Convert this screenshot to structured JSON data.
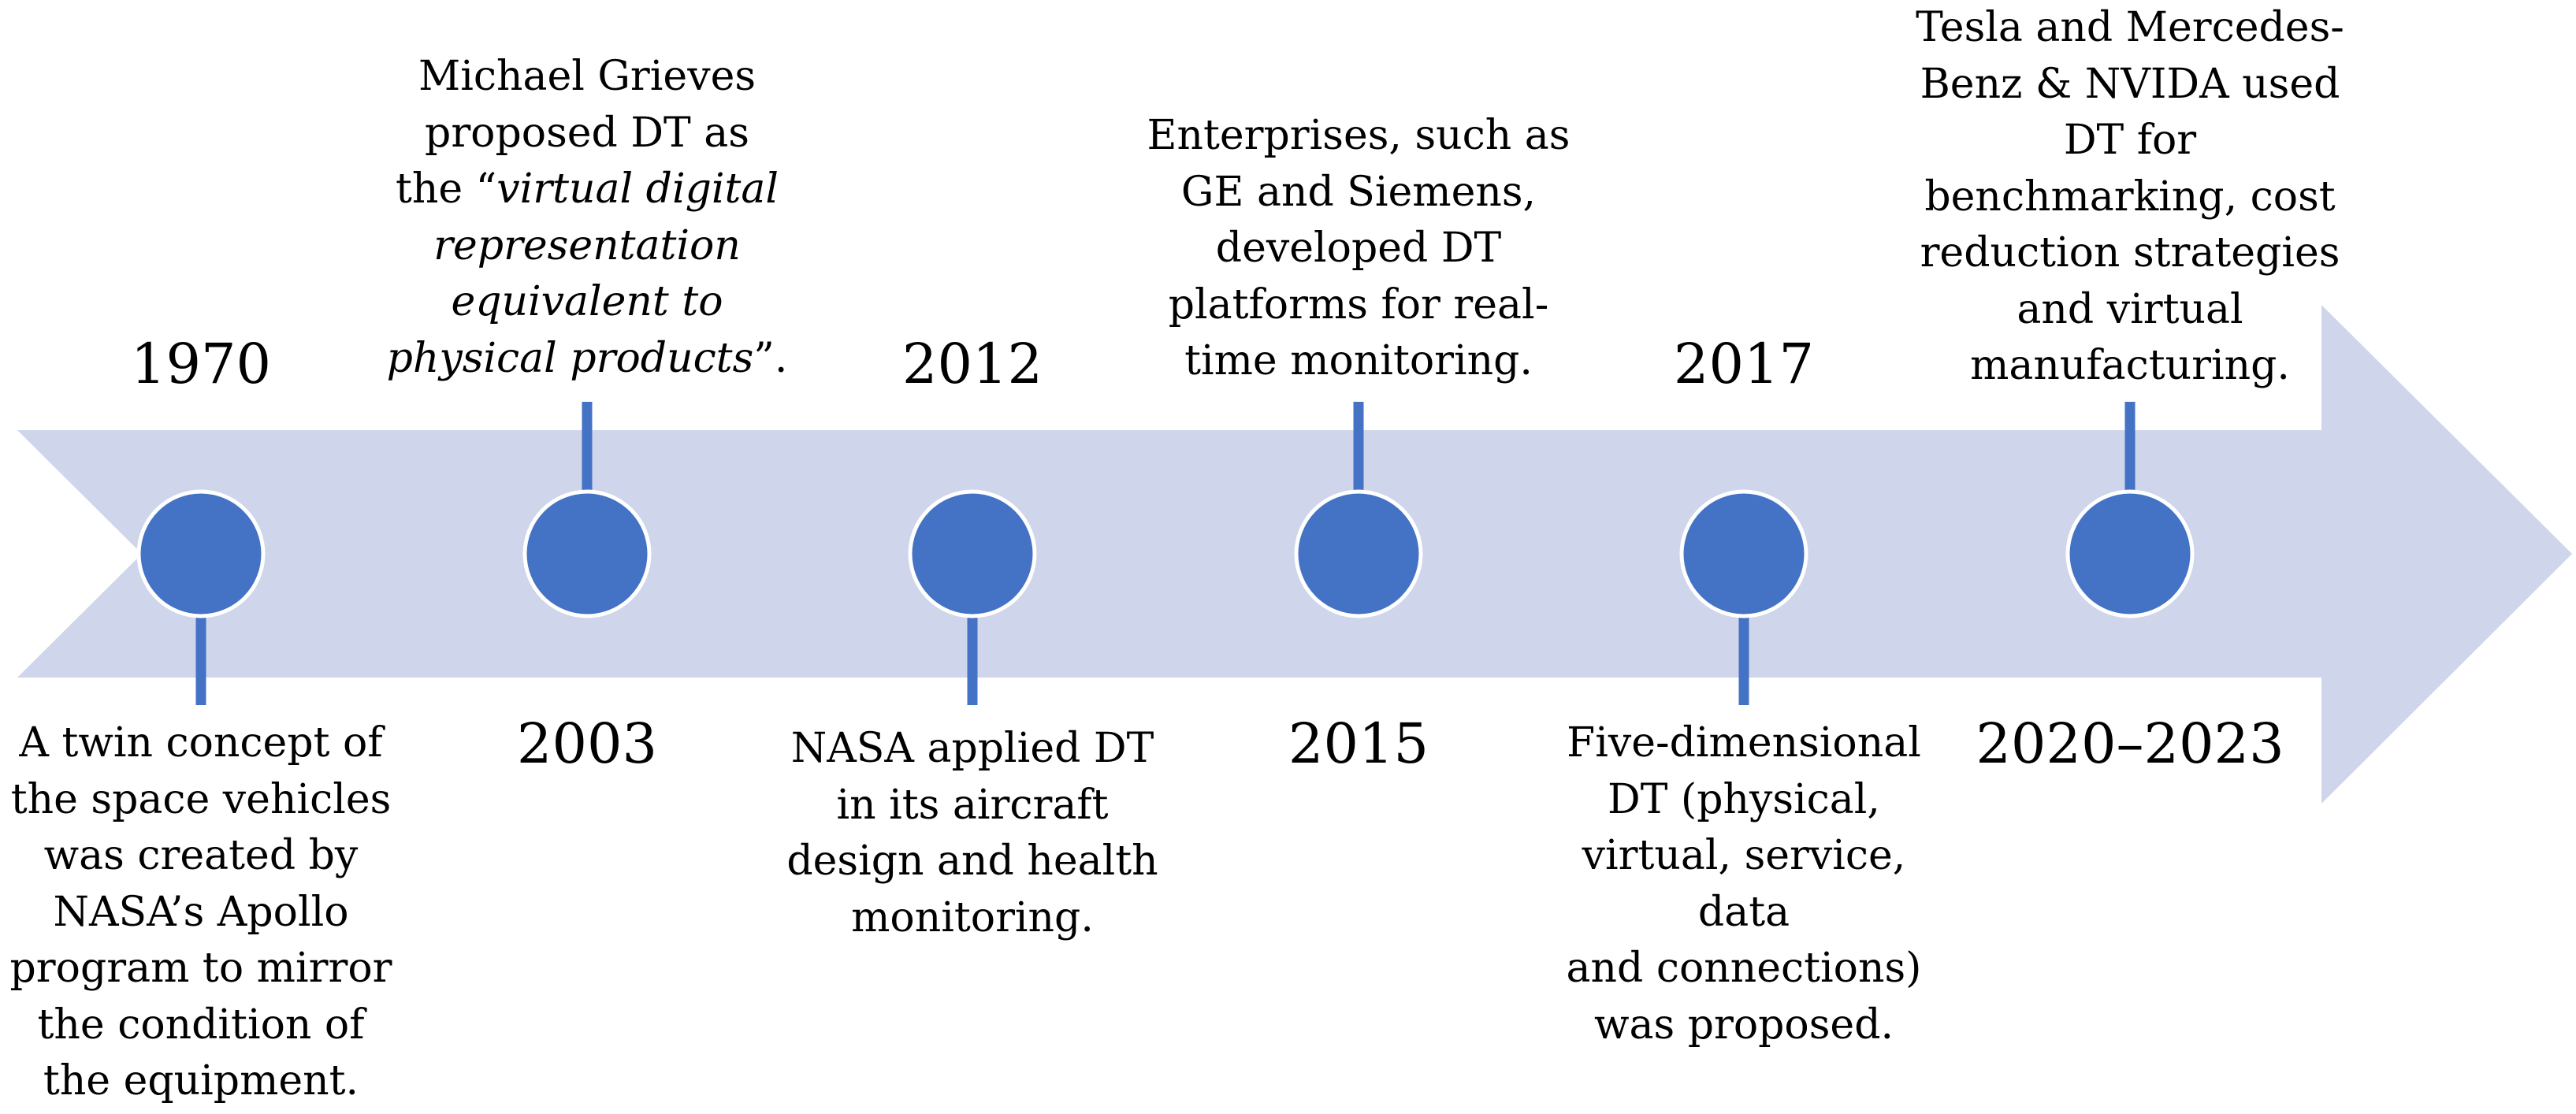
{
  "colors": {
    "arrow": "#CFD5EA",
    "node_fill": "#4472C4",
    "node_stroke": "#FFFFFF",
    "connector": "#4472C4",
    "text": "#000000"
  },
  "events": [
    {
      "year": "1970",
      "description": "A twin concept of\nthe space vehicles\nwas created by\nNASA’s Apollo\nprogram to mirror\nthe condition of\nthe equipment."
    },
    {
      "year": "2003",
      "description_parts": [
        {
          "text": "Michael Grieves\nproposed DT as\nthe “",
          "italic": false
        },
        {
          "text": "virtual digital\nrepresentation\nequivalent to\nphysical products",
          "italic": true
        },
        {
          "text": "”.",
          "italic": false
        }
      ]
    },
    {
      "year": "2012",
      "description": "NASA applied DT\nin its aircraft\ndesign and health\nmonitoring."
    },
    {
      "year": "2015",
      "description": "Enterprises, such as\nGE and Siemens,\ndeveloped DT\nplatforms for real-\ntime monitoring."
    },
    {
      "year": "2017",
      "description": "Five-dimensional\nDT (physical,\nvirtual, service, data\nand connections)\nwas proposed."
    },
    {
      "year": "2020–2023",
      "description": "Tesla and Mercedes-\nBenz & NVIDA used\nDT for\nbenchmarking, cost\nreduction strategies\nand virtual\nmanufacturing."
    }
  ]
}
